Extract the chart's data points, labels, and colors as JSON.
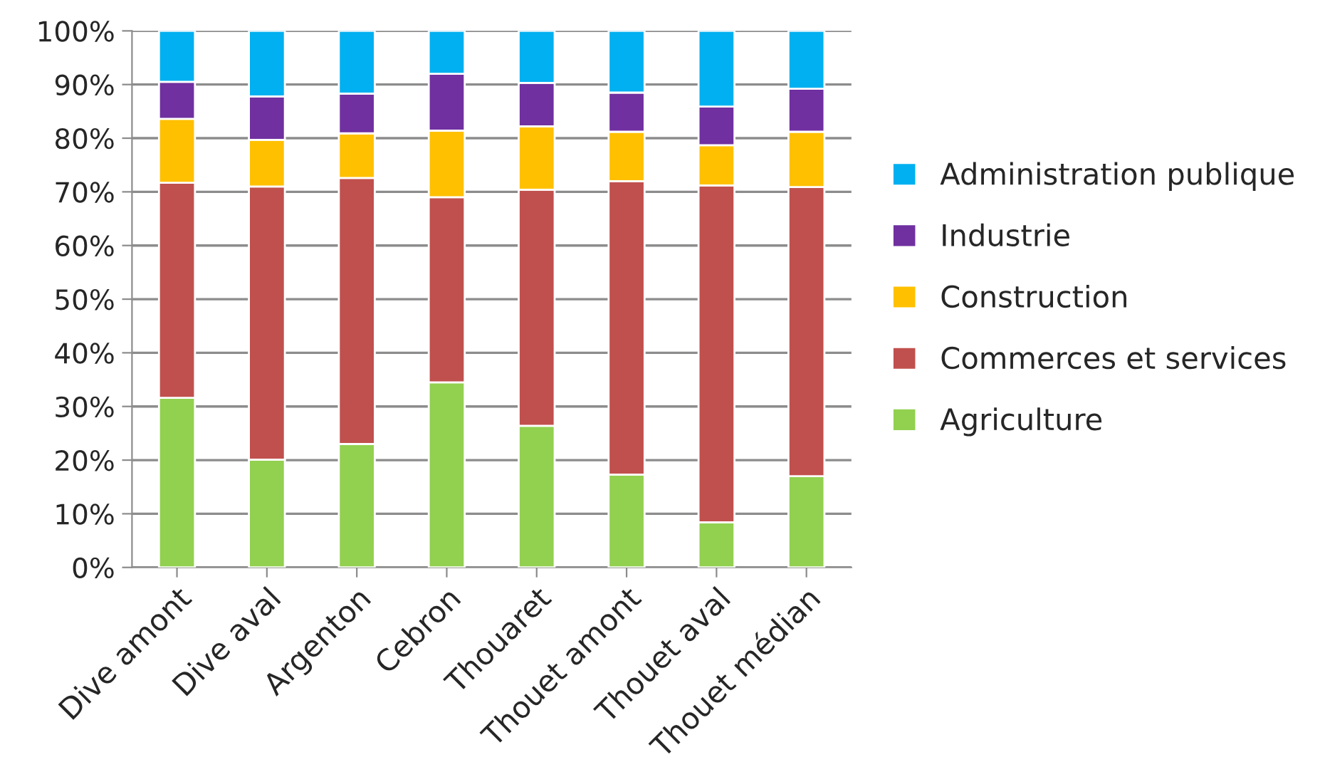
{
  "chart_data": {
    "type": "bar",
    "stacked": true,
    "categories": [
      "Dive amont",
      "Dive aval",
      "Argenton",
      "Cebron",
      "Thouaret",
      "Thouet amont",
      "Thouet aval",
      "Thouet médian"
    ],
    "series": [
      {
        "name": "Agriculture",
        "color": "#92d050",
        "values": [
          31.6,
          20.1,
          23.0,
          34.5,
          26.4,
          17.3,
          8.4,
          17.0
        ]
      },
      {
        "name": "Commerces et services",
        "color": "#c0504d",
        "values": [
          40.1,
          50.9,
          49.6,
          34.5,
          44.0,
          54.7,
          62.8,
          53.9
        ]
      },
      {
        "name": "Construction",
        "color": "#ffc000",
        "values": [
          11.9,
          8.7,
          8.3,
          12.4,
          11.8,
          9.2,
          7.5,
          10.3
        ]
      },
      {
        "name": "Industrie",
        "color": "#7030a0",
        "values": [
          6.9,
          8.1,
          7.4,
          10.6,
          8.1,
          7.3,
          7.2,
          8.0
        ]
      },
      {
        "name": "Administration publique",
        "color": "#00b0f0",
        "values": [
          9.5,
          12.2,
          11.7,
          8.0,
          9.7,
          11.5,
          14.1,
          10.8
        ]
      }
    ],
    "ylim": [
      0,
      100
    ],
    "yticks": [
      {
        "value": 0,
        "label": "0%"
      },
      {
        "value": 10,
        "label": "10%"
      },
      {
        "value": 20,
        "label": "20%"
      },
      {
        "value": 30,
        "label": "30%"
      },
      {
        "value": 40,
        "label": "40%"
      },
      {
        "value": 50,
        "label": "50%"
      },
      {
        "value": 60,
        "label": "60%"
      },
      {
        "value": 70,
        "label": "70%"
      },
      {
        "value": 80,
        "label": "80%"
      },
      {
        "value": 90,
        "label": "90%"
      },
      {
        "value": 100,
        "label": "100%"
      }
    ],
    "grid": "y",
    "legend": "right"
  }
}
